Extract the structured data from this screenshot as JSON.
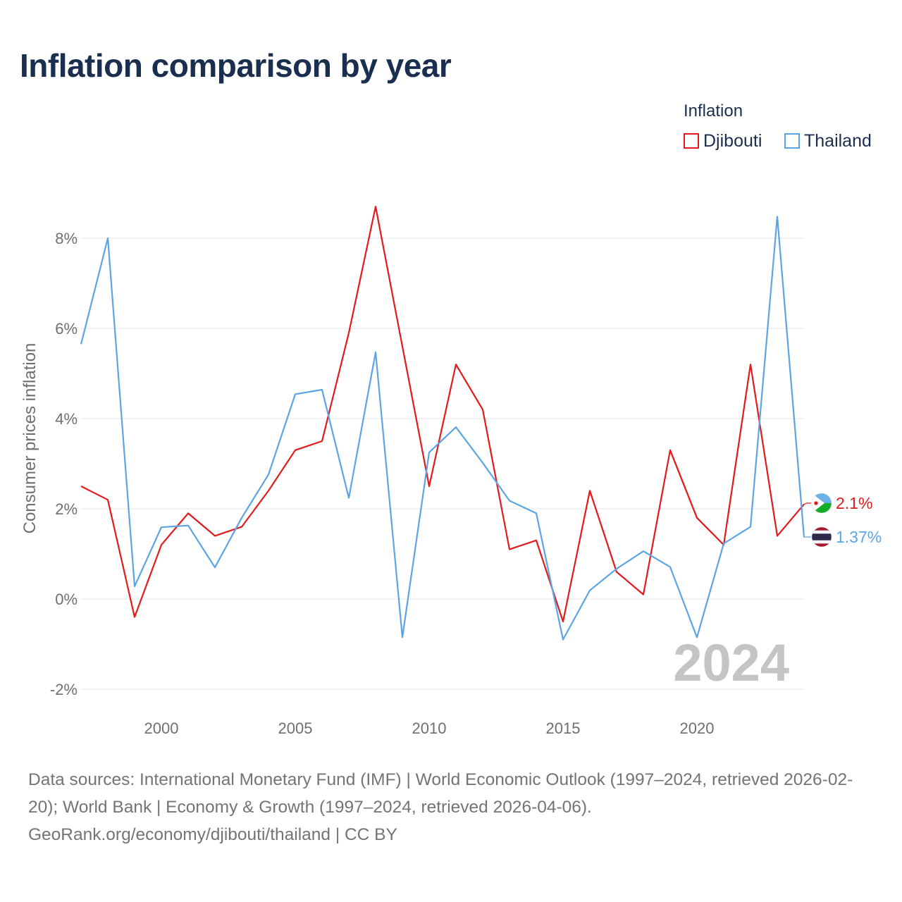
{
  "title": "Inflation comparison by year",
  "legend": {
    "title": "Inflation",
    "items": [
      {
        "name": "Djibouti",
        "color": "#e31a1c"
      },
      {
        "name": "Thailand",
        "color": "#5ca5e5"
      }
    ]
  },
  "chart_data": {
    "type": "line",
    "title": "Inflation comparison by year",
    "xlabel": "",
    "ylabel": "Consumer prices inflation",
    "xlim": [
      1997,
      2024
    ],
    "ylim": [
      -2,
      8
    ],
    "yticks": [
      -2,
      0,
      2,
      4,
      6,
      8
    ],
    "ytick_labels": [
      "-2%",
      "0%",
      "2%",
      "4%",
      "6%",
      "8%"
    ],
    "xticks": [
      2000,
      2005,
      2010,
      2015,
      2020
    ],
    "xtick_labels": [
      "2000",
      "2005",
      "2010",
      "2015",
      "2020"
    ],
    "year_watermark": "2024",
    "x": [
      1997,
      1998,
      1999,
      2000,
      2001,
      2002,
      2003,
      2004,
      2005,
      2006,
      2007,
      2008,
      2009,
      2010,
      2011,
      2012,
      2013,
      2014,
      2015,
      2016,
      2017,
      2018,
      2019,
      2020,
      2021,
      2022,
      2023,
      2024
    ],
    "series": [
      {
        "name": "Djibouti",
        "color": "#e31a1c",
        "end_label": "2.1%",
        "values": [
          2.5,
          2.2,
          -0.4,
          1.2,
          1.9,
          1.4,
          1.6,
          2.4,
          3.3,
          3.5,
          5.9,
          8.7,
          5.6,
          2.5,
          5.2,
          4.2,
          1.1,
          1.3,
          -0.5,
          2.4,
          0.6,
          0.1,
          3.3,
          1.8,
          1.2,
          5.2,
          1.4,
          2.1
        ]
      },
      {
        "name": "Thailand",
        "color": "#5ca5e5",
        "end_label": "1.37%",
        "values": [
          5.65,
          8.0,
          0.28,
          1.59,
          1.63,
          0.7,
          1.8,
          2.76,
          4.54,
          4.64,
          2.24,
          5.47,
          -0.85,
          3.25,
          3.81,
          3.02,
          2.18,
          1.9,
          -0.9,
          0.19,
          0.67,
          1.06,
          0.71,
          -0.85,
          1.23,
          1.6,
          8.48,
          1.37
        ]
      }
    ]
  },
  "footer": {
    "line1": "Data sources: International Monetary Fund (IMF) | World Economic Outlook (1997–2024, retrieved 2026-02-20); World Bank | Economy & Growth (1997–2024, retrieved 2026-04-06).",
    "line2": "GeoRank.org/economy/djibouti/thailand | CC BY"
  }
}
